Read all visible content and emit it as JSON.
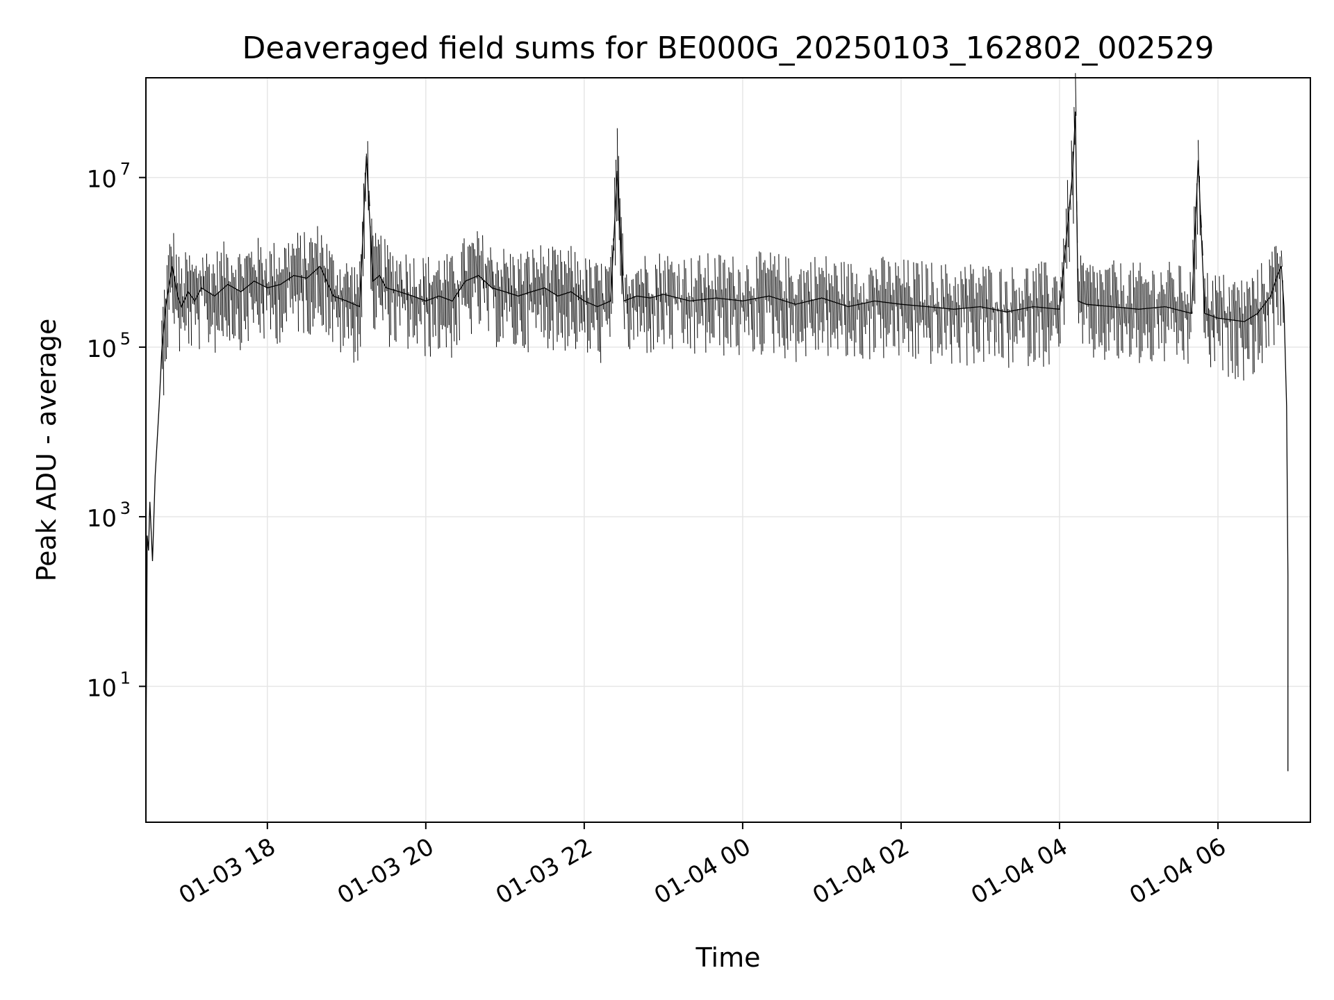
{
  "chart_data": {
    "type": "line",
    "title": "Deaveraged field sums for BE000G_20250103_162802_002529",
    "xlabel": "Time",
    "ylabel": "Peak ADU - average",
    "yscale": "log",
    "ylim": [
      0.25,
      150000000.0
    ],
    "xlim": [
      "2025-01-03T16:28",
      "2025-01-04T07:10"
    ],
    "grid": true,
    "line_color": "#000000",
    "x_ticks": [
      {
        "value": "2025-01-03T18:00",
        "label": "01-03 18"
      },
      {
        "value": "2025-01-03T20:00",
        "label": "01-03 20"
      },
      {
        "value": "2025-01-03T22:00",
        "label": "01-03 22"
      },
      {
        "value": "2025-01-04T00:00",
        "label": "01-04 00"
      },
      {
        "value": "2025-01-04T02:00",
        "label": "01-04 02"
      },
      {
        "value": "2025-01-04T04:00",
        "label": "01-04 04"
      },
      {
        "value": "2025-01-04T06:00",
        "label": "01-04 06"
      }
    ],
    "y_ticks": [
      {
        "value": 10,
        "base": "10",
        "exp": "1"
      },
      {
        "value": 1000,
        "base": "10",
        "exp": "3"
      },
      {
        "value": 100000,
        "base": "10",
        "exp": "5"
      },
      {
        "value": 10000000,
        "base": "10",
        "exp": "7"
      }
    ],
    "series": [
      {
        "x": [
          "2025-01-03T16:28",
          "2025-01-03T16:29",
          "2025-01-03T16:30",
          "2025-01-03T16:31",
          "2025-01-03T16:33",
          "2025-01-03T16:35",
          "2025-01-03T16:38",
          "2025-01-03T16:40",
          "2025-01-03T16:43",
          "2025-01-03T16:46",
          "2025-01-03T16:48",
          "2025-01-03T16:52",
          "2025-01-03T16:55",
          "2025-01-03T17:00",
          "2025-01-03T17:05",
          "2025-01-03T17:10",
          "2025-01-03T17:20",
          "2025-01-03T17:30",
          "2025-01-03T17:40",
          "2025-01-03T17:50",
          "2025-01-03T18:00",
          "2025-01-03T18:10",
          "2025-01-03T18:20",
          "2025-01-03T18:30",
          "2025-01-03T18:40",
          "2025-01-03T18:50",
          "2025-01-03T19:00",
          "2025-01-03T19:10",
          "2025-01-03T19:15",
          "2025-01-03T19:20",
          "2025-01-03T19:25",
          "2025-01-03T19:30",
          "2025-01-03T19:40",
          "2025-01-03T19:50",
          "2025-01-03T20:00",
          "2025-01-03T20:10",
          "2025-01-03T20:20",
          "2025-01-03T20:30",
          "2025-01-03T20:40",
          "2025-01-03T20:50",
          "2025-01-03T21:00",
          "2025-01-03T21:10",
          "2025-01-03T21:20",
          "2025-01-03T21:30",
          "2025-01-03T21:40",
          "2025-01-03T21:50",
          "2025-01-03T22:00",
          "2025-01-03T22:10",
          "2025-01-03T22:20",
          "2025-01-03T22:25",
          "2025-01-03T22:30",
          "2025-01-03T22:40",
          "2025-01-03T22:50",
          "2025-01-03T23:00",
          "2025-01-03T23:20",
          "2025-01-03T23:40",
          "2025-01-04T00:00",
          "2025-01-04T00:20",
          "2025-01-04T00:40",
          "2025-01-04T01:00",
          "2025-01-04T01:20",
          "2025-01-04T01:40",
          "2025-01-04T02:00",
          "2025-01-04T02:20",
          "2025-01-04T02:40",
          "2025-01-04T03:00",
          "2025-01-04T03:20",
          "2025-01-04T03:40",
          "2025-01-04T04:00",
          "2025-01-04T04:10",
          "2025-01-04T04:12",
          "2025-01-04T04:14",
          "2025-01-04T04:20",
          "2025-01-04T04:40",
          "2025-01-04T05:00",
          "2025-01-04T05:20",
          "2025-01-04T05:40",
          "2025-01-04T05:45",
          "2025-01-04T05:50",
          "2025-01-04T06:00",
          "2025-01-04T06:20",
          "2025-01-04T06:30",
          "2025-01-04T06:40",
          "2025-01-04T06:45",
          "2025-01-04T06:48",
          "2025-01-04T06:50",
          "2025-01-04T06:52",
          "2025-01-04T06:53",
          "2025-01-04T06:53"
        ],
        "y": [
          1,
          600,
          400,
          1500,
          300,
          3000,
          20000,
          90000,
          300000,
          600000,
          900000,
          400000,
          300000,
          450000,
          350000,
          500000,
          400000,
          550000,
          450000,
          600000,
          500000,
          550000,
          700000,
          650000,
          900000,
          400000,
          350000,
          300000,
          18000000,
          600000,
          700000,
          500000,
          450000,
          400000,
          350000,
          400000,
          350000,
          600000,
          700000,
          500000,
          450000,
          400000,
          450000,
          500000,
          400000,
          450000,
          350000,
          300000,
          350000,
          12000000,
          350000,
          400000,
          380000,
          420000,
          350000,
          380000,
          350000,
          400000,
          320000,
          380000,
          300000,
          350000,
          320000,
          300000,
          280000,
          300000,
          260000,
          300000,
          280000,
          12000000,
          60000000,
          350000,
          320000,
          300000,
          280000,
          300000,
          250000,
          16000000,
          250000,
          220000,
          200000,
          250000,
          400000,
          700000,
          900000,
          300000,
          20000,
          200,
          1
        ]
      }
    ]
  }
}
